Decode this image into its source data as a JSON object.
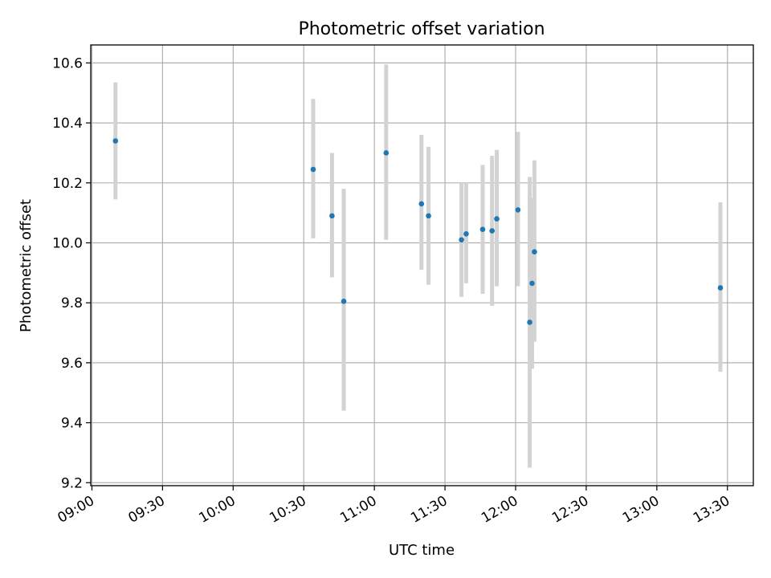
{
  "chart_data": {
    "type": "scatter",
    "title": "Photometric offset variation",
    "xlabel": "UTC time",
    "ylabel": "Photometric offset",
    "x_tick_labels": [
      "09:00",
      "09:30",
      "10:00",
      "10:30",
      "11:00",
      "11:30",
      "12:00",
      "12:30",
      "13:00",
      "13:30"
    ],
    "y_tick_labels": [
      "9.2",
      "9.4",
      "9.6",
      "9.8",
      "10.0",
      "10.2",
      "10.4",
      "10.6"
    ],
    "xlim": [
      "08:59:30",
      "13:41:00"
    ],
    "ylim": [
      9.19,
      10.66
    ],
    "grid": true,
    "marker_color": "#1f77b4",
    "errorbar_color": "#d3d3d3",
    "points": [
      {
        "x": "09:10",
        "y": 10.34,
        "yerr_low": 10.145,
        "yerr_high": 10.535
      },
      {
        "x": "10:34",
        "y": 10.245,
        "yerr_low": 10.015,
        "yerr_high": 10.48
      },
      {
        "x": "10:42",
        "y": 10.09,
        "yerr_low": 9.885,
        "yerr_high": 10.3
      },
      {
        "x": "10:47",
        "y": 9.805,
        "yerr_low": 9.44,
        "yerr_high": 10.18
      },
      {
        "x": "11:05",
        "y": 10.3,
        "yerr_low": 10.01,
        "yerr_high": 10.595
      },
      {
        "x": "11:20",
        "y": 10.13,
        "yerr_low": 9.91,
        "yerr_high": 10.36
      },
      {
        "x": "11:23",
        "y": 10.09,
        "yerr_low": 9.86,
        "yerr_high": 10.32
      },
      {
        "x": "11:37",
        "y": 10.01,
        "yerr_low": 9.82,
        "yerr_high": 10.2
      },
      {
        "x": "11:39",
        "y": 10.03,
        "yerr_low": 9.865,
        "yerr_high": 10.2
      },
      {
        "x": "11:46",
        "y": 10.045,
        "yerr_low": 9.83,
        "yerr_high": 10.26
      },
      {
        "x": "11:50",
        "y": 10.04,
        "yerr_low": 9.79,
        "yerr_high": 10.29
      },
      {
        "x": "11:52",
        "y": 10.08,
        "yerr_low": 9.855,
        "yerr_high": 10.31
      },
      {
        "x": "12:01",
        "y": 10.11,
        "yerr_low": 9.855,
        "yerr_high": 10.37
      },
      {
        "x": "12:06",
        "y": 9.735,
        "yerr_low": 9.25,
        "yerr_high": 10.22
      },
      {
        "x": "12:07",
        "y": 9.865,
        "yerr_low": 9.58,
        "yerr_high": 10.15
      },
      {
        "x": "12:08",
        "y": 9.97,
        "yerr_low": 9.67,
        "yerr_high": 10.275
      },
      {
        "x": "13:27",
        "y": 9.85,
        "yerr_low": 9.57,
        "yerr_high": 10.135
      }
    ]
  }
}
